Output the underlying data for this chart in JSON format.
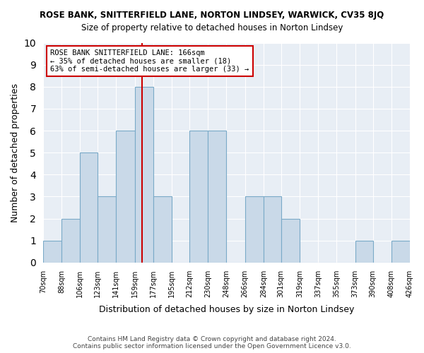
{
  "title": "ROSE BANK, SNITTERFIELD LANE, NORTON LINDSEY, WARWICK, CV35 8JQ",
  "subtitle": "Size of property relative to detached houses in Norton Lindsey",
  "xlabel": "Distribution of detached houses by size in Norton Lindsey",
  "ylabel": "Number of detached properties",
  "footer_line1": "Contains HM Land Registry data © Crown copyright and database right 2024.",
  "footer_line2": "Contains public sector information licensed under the Open Government Licence v3.0.",
  "annotation_title": "ROSE BANK SNITTERFIELD LANE: 166sqm",
  "annotation_line2": "← 35% of detached houses are smaller (18)",
  "annotation_line3": "63% of semi-detached houses are larger (33) →",
  "property_line_x": 166,
  "bar_color": "#c9d9e8",
  "bar_edge_color": "#7aaac8",
  "property_line_color": "#cc0000",
  "annotation_box_edge_color": "#cc0000",
  "annotation_box_face_color": "#ffffff",
  "background_color": "#e8eef5",
  "bins": [
    70,
    88,
    106,
    123,
    141,
    159,
    177,
    195,
    212,
    230,
    248,
    266,
    284,
    301,
    319,
    337,
    355,
    373,
    390,
    408,
    426
  ],
  "bin_labels": [
    "70sqm",
    "88sqm",
    "106sqm",
    "123sqm",
    "141sqm",
    "159sqm",
    "177sqm",
    "195sqm",
    "212sqm",
    "230sqm",
    "248sqm",
    "266sqm",
    "284sqm",
    "301sqm",
    "319sqm",
    "337sqm",
    "355sqm",
    "373sqm",
    "390sqm",
    "408sqm",
    "426sqm"
  ],
  "counts": [
    1,
    2,
    5,
    3,
    6,
    8,
    3,
    0,
    6,
    6,
    0,
    3,
    3,
    2,
    0,
    0,
    0,
    1,
    0,
    1
  ],
  "ylim": [
    0,
    10
  ],
  "yticks": [
    0,
    1,
    2,
    3,
    4,
    5,
    6,
    7,
    8,
    9,
    10
  ]
}
